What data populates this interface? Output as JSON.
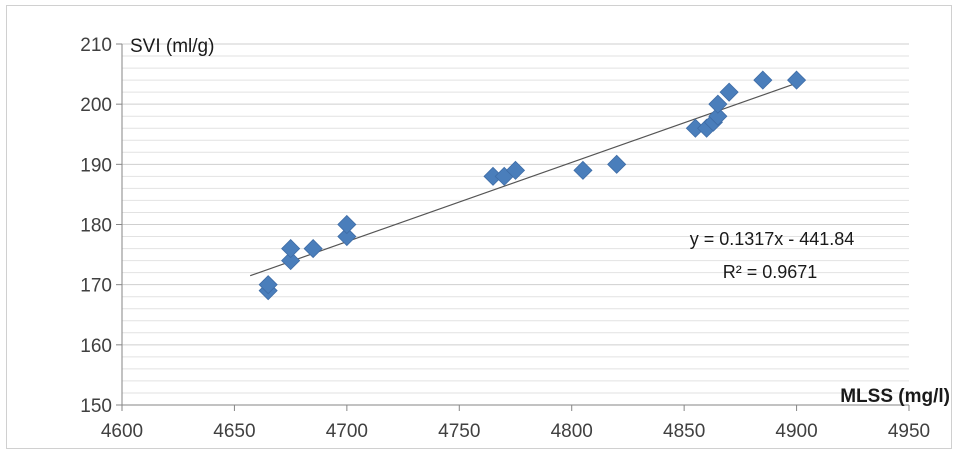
{
  "chart_data": {
    "type": "scatter",
    "title": "",
    "xlabel": "MLSS (mg/l)",
    "ylabel": "SVI (ml/g)",
    "xlim": [
      4600,
      4950
    ],
    "ylim": [
      150,
      210
    ],
    "x_ticks": [
      "4600",
      "4650",
      "4700",
      "4750",
      "4800",
      "4850",
      "4900",
      "4950"
    ],
    "y_ticks": [
      "150",
      "160",
      "170",
      "180",
      "190",
      "200",
      "210"
    ],
    "grid": "horizontal",
    "marker": "diamond",
    "colors": {
      "points": "#4a7ebb",
      "trendline": "#555555",
      "grid": "#d9d9d9",
      "axis": "#868686"
    },
    "series": [
      {
        "points": [
          {
            "x": 4665,
            "y": 169
          },
          {
            "x": 4665,
            "y": 170
          },
          {
            "x": 4675,
            "y": 174
          },
          {
            "x": 4675,
            "y": 176
          },
          {
            "x": 4685,
            "y": 176
          },
          {
            "x": 4700,
            "y": 178
          },
          {
            "x": 4700,
            "y": 180
          },
          {
            "x": 4765,
            "y": 188
          },
          {
            "x": 4770,
            "y": 188
          },
          {
            "x": 4775,
            "y": 189
          },
          {
            "x": 4805,
            "y": 189
          },
          {
            "x": 4820,
            "y": 190
          },
          {
            "x": 4855,
            "y": 196
          },
          {
            "x": 4860,
            "y": 196
          },
          {
            "x": 4863,
            "y": 197
          },
          {
            "x": 4865,
            "y": 198
          },
          {
            "x": 4865,
            "y": 200
          },
          {
            "x": 4870,
            "y": 202
          },
          {
            "x": 4885,
            "y": 204
          },
          {
            "x": 4900,
            "y": 204
          }
        ]
      }
    ],
    "trendline": {
      "type": "linear",
      "slope": 0.1317,
      "intercept": -441.84,
      "x_range": [
        4657,
        4900
      ],
      "equation": "y = 0.1317x - 441.84",
      "r_squared": "R² = 0.9671"
    }
  }
}
